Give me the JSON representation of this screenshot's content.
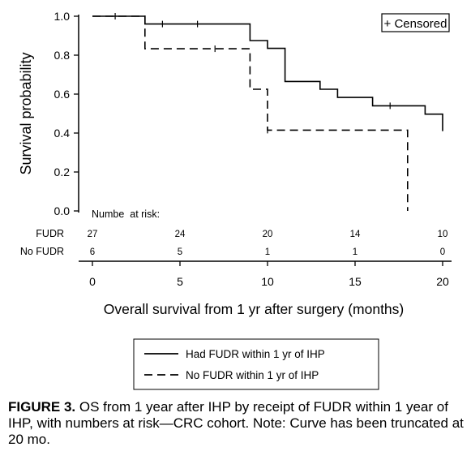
{
  "chart_data": {
    "type": "line",
    "subtype": "kaplan-meier",
    "xlabel": "Overall survival from 1 yr after surgery (months)",
    "ylabel": "Survival probability",
    "xlim": [
      0,
      20
    ],
    "ylim": [
      0,
      1
    ],
    "xticks": [
      "0",
      "5",
      "10",
      "15",
      "20"
    ],
    "yticks": [
      "0.0",
      "0.2",
      "0.4",
      "0.6",
      "0.8",
      "1.0"
    ],
    "grid": false,
    "censor_legend": "+ Censored",
    "legend_position": "bottom",
    "series": [
      {
        "name": "Had FUDR within 1 yr of IHP",
        "line_style": "solid",
        "steps": [
          [
            0,
            1.0
          ],
          [
            3,
            0.96
          ],
          [
            9,
            0.875
          ],
          [
            10,
            0.835
          ],
          [
            11,
            0.665
          ],
          [
            13,
            0.625
          ],
          [
            14,
            0.583
          ],
          [
            16,
            0.54
          ],
          [
            19,
            0.497
          ],
          [
            20,
            0.41
          ]
        ],
        "censored": [
          [
            1.3,
            1.0
          ],
          [
            4,
            0.96
          ],
          [
            6,
            0.96
          ],
          [
            17,
            0.54
          ]
        ]
      },
      {
        "name": "No FUDR within 1 yr of IHP",
        "line_style": "dashed",
        "steps": [
          [
            0,
            1.0
          ],
          [
            3,
            0.833
          ],
          [
            9,
            0.625
          ],
          [
            10,
            0.415
          ],
          [
            18,
            0.0
          ]
        ],
        "censored": [
          [
            7,
            0.833
          ],
          [
            10,
            0.415
          ]
        ]
      }
    ],
    "risk_table": {
      "title": "Numbe  at risk:",
      "times": [
        0,
        5,
        10,
        15,
        20
      ],
      "rows": [
        {
          "label": "FUDR",
          "values": [
            "27",
            "24",
            "20",
            "14",
            "10"
          ]
        },
        {
          "label": "No FUDR",
          "values": [
            "6",
            "5",
            "1",
            "1",
            "0"
          ]
        }
      ]
    }
  },
  "caption": {
    "label": "FIGURE 3.",
    "text": " OS from 1 year after IHP by receipt of FUDR within 1 year of IHP, with numbers at risk—CRC cohort. Note: Curve has been truncated at 20 mo."
  }
}
